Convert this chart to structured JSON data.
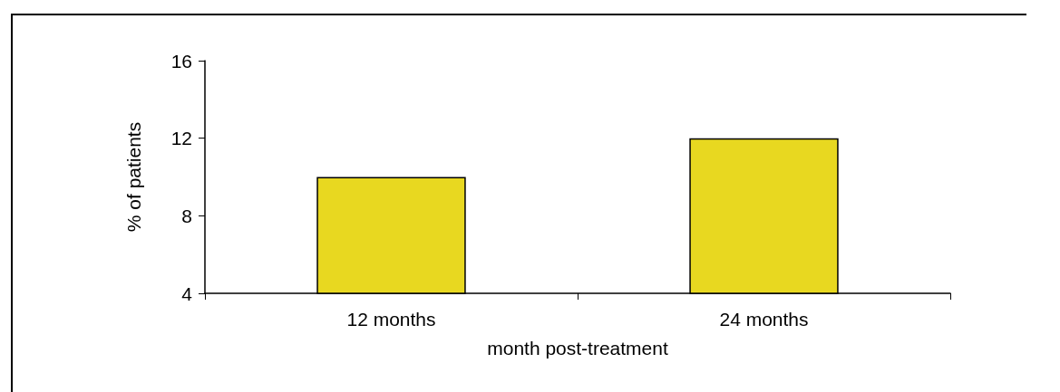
{
  "chart_data": {
    "type": "bar",
    "xlabel": "month post-treatment",
    "ylabel": "% of patients",
    "categories": [
      "12 months",
      "24 months"
    ],
    "values": [
      10,
      12
    ],
    "color": "#e8d820",
    "ylim": [
      4,
      16
    ],
    "yticks": [
      4,
      8,
      12,
      16
    ],
    "grid": false
  }
}
